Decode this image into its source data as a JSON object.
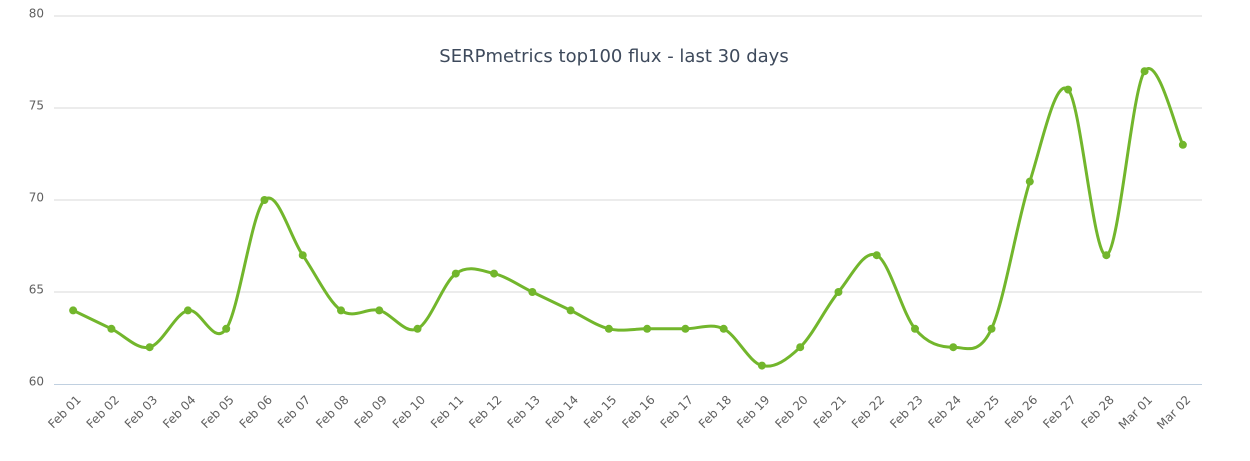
{
  "chart_data": {
    "type": "line",
    "title": "SERPmetrics top100 flux - last 30 days",
    "categories": [
      "Feb 01",
      "Feb 02",
      "Feb 03",
      "Feb 04",
      "Feb 05",
      "Feb 06",
      "Feb 07",
      "Feb 08",
      "Feb 09",
      "Feb 10",
      "Feb 11",
      "Feb 12",
      "Feb 13",
      "Feb 14",
      "Feb 15",
      "Feb 16",
      "Feb 17",
      "Feb 18",
      "Feb 19",
      "Feb 20",
      "Feb 21",
      "Feb 22",
      "Feb 23",
      "Feb 24",
      "Feb 25",
      "Feb 26",
      "Feb 27",
      "Feb 28",
      "Mar 01",
      "Mar 02"
    ],
    "values": [
      64,
      63,
      62,
      64,
      63,
      70,
      67,
      64,
      64,
      63,
      66,
      66,
      65,
      64,
      63,
      63,
      63,
      63,
      61,
      62,
      65,
      67,
      63,
      62,
      63,
      71,
      76,
      67,
      77,
      73
    ],
    "color": "#72b62c",
    "ylim": [
      60,
      80
    ],
    "yticks": [
      60,
      65,
      70,
      75,
      80
    ],
    "grid": true
  }
}
